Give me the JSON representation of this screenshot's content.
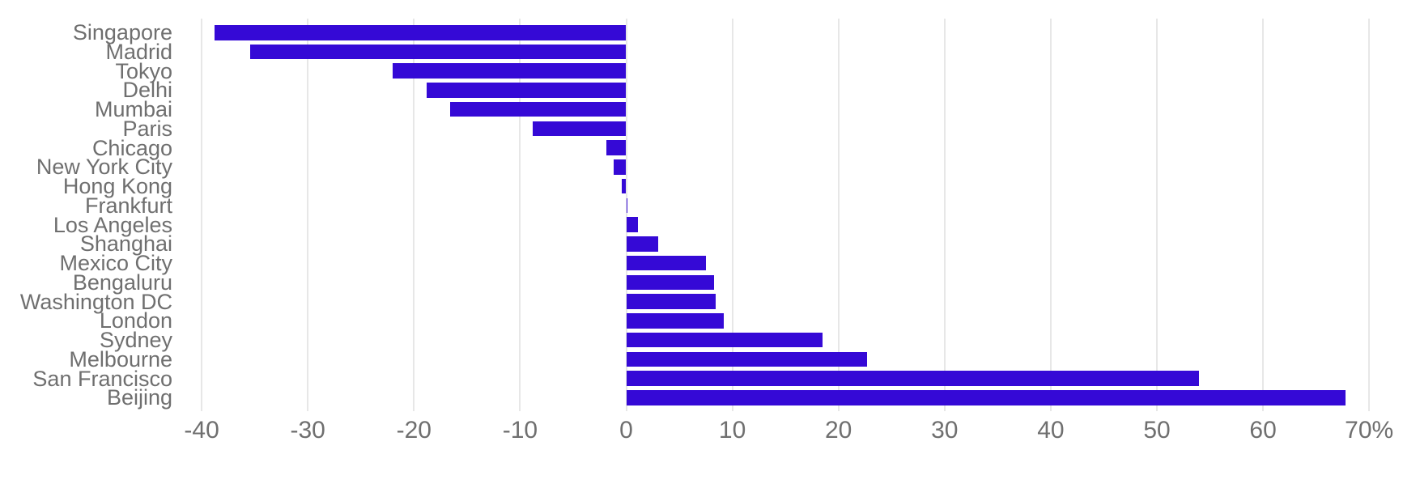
{
  "chart_data": {
    "type": "bar",
    "orientation": "horizontal",
    "title": "",
    "xlabel": "",
    "ylabel": "",
    "unit": "%",
    "xlim": [
      -42,
      73
    ],
    "grid": "vertical-only",
    "legend": "none",
    "categories": [
      "Singapore",
      "Madrid",
      "Tokyo",
      "Delhi",
      "Mumbai",
      "Paris",
      "Chicago",
      "New York City",
      "Hong Kong",
      "Frankfurt",
      "Los Angeles",
      "Shanghai",
      "Mexico City",
      "Bengaluru",
      "Washington DC",
      "London",
      "Sydney",
      "Melbourne",
      "San Francisco",
      "Beijing"
    ],
    "values": [
      -38.8,
      -35.4,
      -22.0,
      -18.8,
      -16.6,
      -8.8,
      -1.9,
      -1.2,
      -0.4,
      0.1,
      1.1,
      3.0,
      7.5,
      8.3,
      8.4,
      9.2,
      18.5,
      22.7,
      54.0,
      67.8
    ],
    "x_ticks": [
      {
        "value": -40,
        "label": "-40"
      },
      {
        "value": -30,
        "label": "-30"
      },
      {
        "value": -20,
        "label": "-20"
      },
      {
        "value": -10,
        "label": "-10"
      },
      {
        "value": 0,
        "label": "0"
      },
      {
        "value": 10,
        "label": "10"
      },
      {
        "value": 20,
        "label": "20"
      },
      {
        "value": 30,
        "label": "30"
      },
      {
        "value": 40,
        "label": "40"
      },
      {
        "value": 50,
        "label": "50"
      },
      {
        "value": 60,
        "label": "60"
      },
      {
        "value": 70,
        "label": "70%"
      }
    ],
    "colors": {
      "bar": "#3509d6",
      "gridline": "#e7e7e7",
      "category_label": "#6f6f6f",
      "tick_label": "#6f6f6f",
      "background": "#ffffff"
    }
  }
}
